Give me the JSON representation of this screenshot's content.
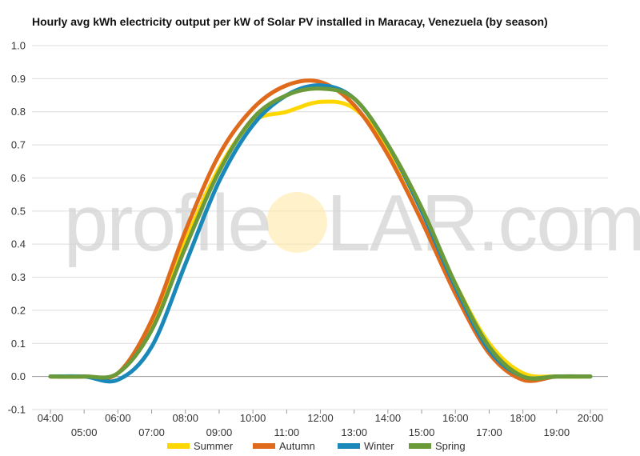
{
  "chart_data": {
    "type": "line",
    "title": "Hourly avg kWh electricity output per kW of Solar PV installed in Maracay, Venezuela (by season)",
    "xlabel": "",
    "ylabel": "",
    "ylim": [
      -0.1,
      1.0
    ],
    "yticks": [
      "-0.1",
      "0.0",
      "0.1",
      "0.2",
      "0.3",
      "0.4",
      "0.5",
      "0.6",
      "0.7",
      "0.8",
      "0.9",
      "1.0"
    ],
    "x": [
      "04:00",
      "05:00",
      "06:00",
      "07:00",
      "08:00",
      "09:00",
      "10:00",
      "11:00",
      "12:00",
      "13:00",
      "14:00",
      "15:00",
      "16:00",
      "17:00",
      "18:00",
      "19:00",
      "20:00"
    ],
    "grid": "horizontal",
    "legend": "bottom",
    "series": [
      {
        "name": "Summer",
        "color": "#FFD700",
        "values": [
          0.0,
          0.0,
          0.01,
          0.16,
          0.41,
          0.63,
          0.77,
          0.8,
          0.83,
          0.81,
          0.69,
          0.5,
          0.28,
          0.1,
          0.01,
          0.0,
          0.0
        ]
      },
      {
        "name": "Autumn",
        "color": "#E06A1C",
        "values": [
          0.0,
          0.0,
          0.01,
          0.17,
          0.44,
          0.67,
          0.81,
          0.88,
          0.89,
          0.82,
          0.67,
          0.47,
          0.25,
          0.07,
          -0.01,
          0.0,
          0.0
        ]
      },
      {
        "name": "Winter",
        "color": "#1A88B8",
        "values": [
          0.0,
          0.0,
          -0.01,
          0.09,
          0.34,
          0.59,
          0.76,
          0.85,
          0.88,
          0.84,
          0.7,
          0.5,
          0.27,
          0.08,
          0.0,
          0.0,
          0.0
        ]
      },
      {
        "name": "Spring",
        "color": "#6B9A3A",
        "values": [
          0.0,
          0.0,
          0.01,
          0.14,
          0.39,
          0.62,
          0.78,
          0.85,
          0.87,
          0.84,
          0.7,
          0.51,
          0.28,
          0.09,
          0.0,
          0.0,
          0.0
        ]
      }
    ]
  },
  "watermark": {
    "left": "profile",
    "right": "LAR.com"
  }
}
